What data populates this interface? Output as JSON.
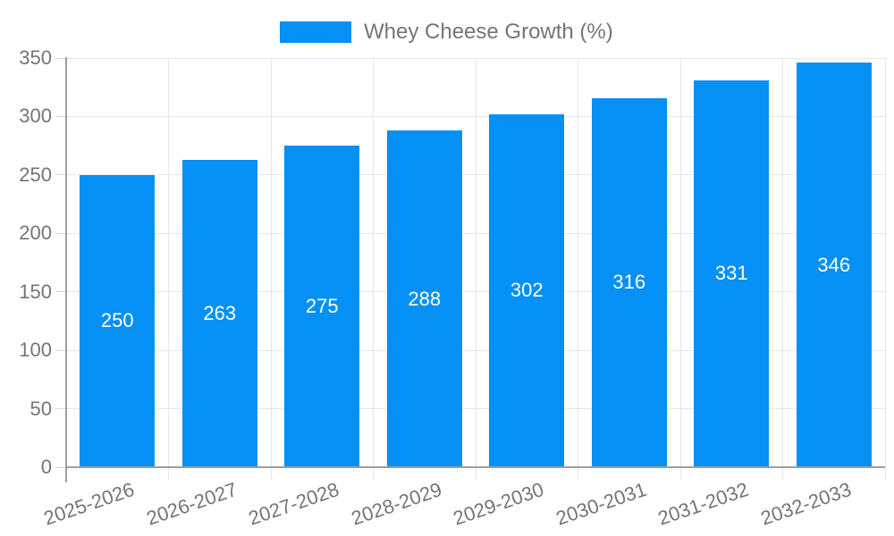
{
  "legend": {
    "label": "Whey Cheese Growth (%)"
  },
  "colors": {
    "bar": "#0590f5",
    "grid": "#e6e6e6",
    "axis_line": "#9e9e9e",
    "tick": "#d9d9d9",
    "axis_text": "#757575",
    "value_label": "#ffffff",
    "background": "#ffffff"
  },
  "chart_data": {
    "type": "bar",
    "title": "",
    "xlabel": "",
    "ylabel": "",
    "legend_entries": [
      "Whey Cheese Growth (%)"
    ],
    "legend_position": "top-center",
    "categories": [
      "2025-2026",
      "2026-2027",
      "2027-2028",
      "2028-2029",
      "2029-2030",
      "2030-2031",
      "2031-2032",
      "2032-2033"
    ],
    "series": [
      {
        "name": "Whey Cheese Growth (%)",
        "values": [
          250,
          263,
          275,
          288,
          302,
          316,
          331,
          346
        ]
      }
    ],
    "value_labels": "inside-center",
    "ylim": [
      0,
      350
    ],
    "yticks": [
      0,
      50,
      100,
      150,
      200,
      250,
      300,
      350
    ],
    "grid": true,
    "x_tick_label_rotation_deg": -19
  }
}
